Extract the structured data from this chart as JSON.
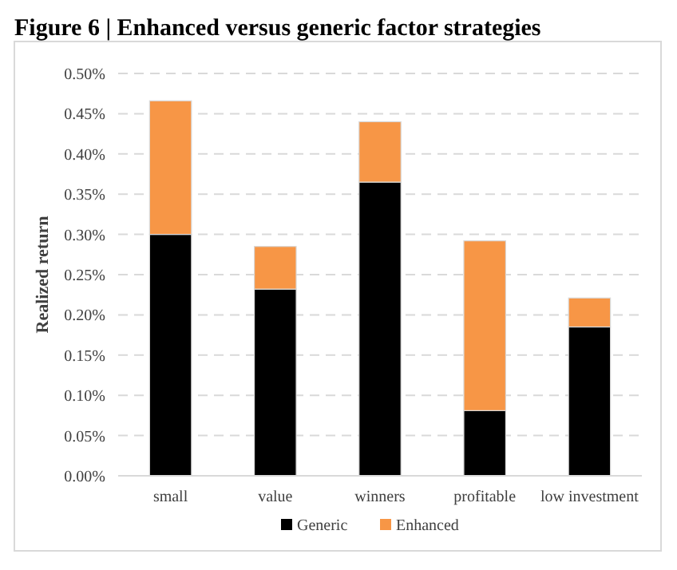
{
  "chart_data": {
    "type": "bar",
    "title": "Figure 6 | Enhanced versus generic factor strategies",
    "ylabel": "Realized return",
    "stacked": true,
    "categories": [
      "small",
      "value",
      "winners",
      "profitable",
      "low investment"
    ],
    "series": [
      {
        "name": "Generic",
        "color": "#000000",
        "values": [
          0.3,
          0.232,
          0.365,
          0.081,
          0.185
        ]
      },
      {
        "name": "Enhanced",
        "color": "#f79646",
        "values": [
          0.166,
          0.053,
          0.075,
          0.211,
          0.036
        ]
      }
    ],
    "ylim": [
      0,
      0.5
    ],
    "yticks": [
      {
        "value": 0,
        "label": "0.00%"
      },
      {
        "value": 0.05,
        "label": "0.05%"
      },
      {
        "value": 0.1,
        "label": "0.10%"
      },
      {
        "value": 0.15,
        "label": "0.15%"
      },
      {
        "value": 0.2,
        "label": "0.20%"
      },
      {
        "value": 0.25,
        "label": "0.25%"
      },
      {
        "value": 0.3,
        "label": "0.30%"
      },
      {
        "value": 0.35,
        "label": "0.35%"
      },
      {
        "value": 0.4,
        "label": "0.40%"
      },
      {
        "value": 0.45,
        "label": "0.45%"
      },
      {
        "value": 0.5,
        "label": "0.50%"
      }
    ],
    "grid": "y",
    "legend": "bottom"
  }
}
